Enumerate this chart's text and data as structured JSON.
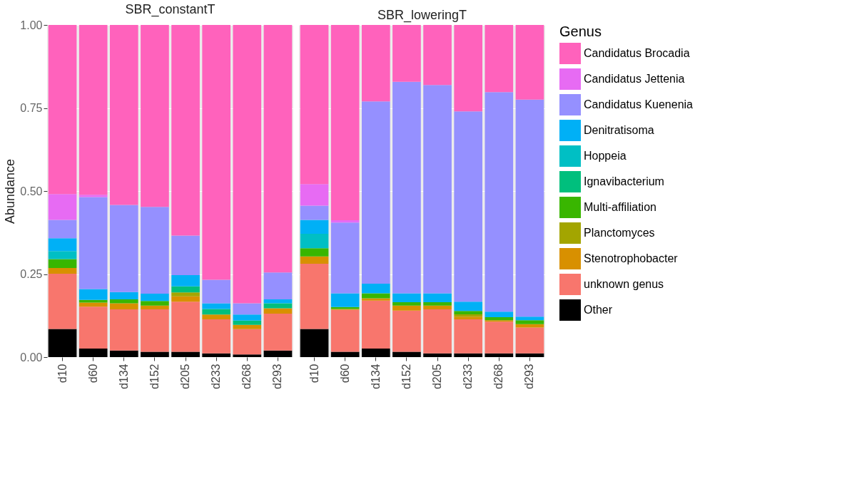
{
  "chart_data": [
    {
      "type": "bar",
      "stacked": true,
      "title": "SBR_constantT",
      "ylabel": "Abundance",
      "categories": [
        "d10",
        "d60",
        "d134",
        "d152",
        "d205",
        "d233",
        "d268",
        "d293"
      ],
      "ylim": [
        0,
        1
      ],
      "yticks": [
        {
          "value": 0,
          "label": "0.00"
        },
        {
          "value": 0.25,
          "label": "0.25"
        },
        {
          "value": 0.5,
          "label": "0.50"
        },
        {
          "value": 0.75,
          "label": "0.75"
        },
        {
          "value": 1,
          "label": "1.00"
        }
      ],
      "grid": true,
      "legend": "right",
      "legend_title": "Genus",
      "series": [
        {
          "name": "Other",
          "color": "#000000",
          "values": [
            0.085,
            0.026,
            0.02,
            0.016,
            0.016,
            0.011,
            0.008,
            0.02
          ]
        },
        {
          "name": "unknown genus",
          "color": "#f8766d",
          "values": [
            0.166,
            0.126,
            0.124,
            0.128,
            0.151,
            0.103,
            0.076,
            0.111
          ]
        },
        {
          "name": "Stenotrophobacter",
          "color": "#d89000",
          "values": [
            0.017,
            0.012,
            0.018,
            0.011,
            0.016,
            0.014,
            0.013,
            0.016
          ]
        },
        {
          "name": "Planctomyces",
          "color": "#a3a500",
          "values": [
            0,
            0,
            0,
            0,
            0.012,
            0,
            0,
            0
          ]
        },
        {
          "name": "Multi-affiliation",
          "color": "#39b600",
          "values": [
            0.027,
            0.008,
            0.012,
            0.014,
            0,
            0,
            0,
            0
          ]
        },
        {
          "name": "Ignavibacterium",
          "color": "#00bf7d",
          "values": [
            0,
            0,
            0,
            0,
            0.018,
            0.017,
            0.013,
            0.015
          ]
        },
        {
          "name": "Hoppeia",
          "color": "#00bfc4",
          "values": [
            0.024,
            0,
            0,
            0,
            0,
            0,
            0,
            0
          ]
        },
        {
          "name": "Denitratisoma",
          "color": "#00b0f6",
          "values": [
            0.039,
            0.033,
            0.022,
            0.022,
            0.034,
            0.017,
            0.018,
            0.012
          ]
        },
        {
          "name": "Candidatus Kuenenia",
          "color": "#9590ff",
          "values": [
            0.055,
            0.277,
            0.262,
            0.261,
            0.119,
            0.071,
            0.034,
            0.081
          ]
        },
        {
          "name": "Candidatus Jettenia",
          "color": "#e76bf3",
          "values": [
            0.078,
            0.007,
            0,
            0,
            0,
            0,
            0,
            0
          ]
        },
        {
          "name": "Candidatus Brocadia",
          "color": "#ff62bc",
          "values": [
            0.509,
            0.511,
            0.542,
            0.548,
            0.634,
            0.767,
            0.838,
            0.745
          ]
        }
      ]
    },
    {
      "type": "bar",
      "stacked": true,
      "title": "SBR_loweringT",
      "categories": [
        "d10",
        "d60",
        "d134",
        "d152",
        "d205",
        "d233",
        "d268",
        "d293"
      ],
      "ylim": [
        0,
        1
      ],
      "yticks": [
        {
          "value": 0,
          "label": null
        },
        {
          "value": 0.25,
          "label": null
        },
        {
          "value": 0.5,
          "label": null
        },
        {
          "value": 0.75,
          "label": null
        },
        {
          "value": 1,
          "label": null
        }
      ],
      "grid": true,
      "tick_labels": "x",
      "series": [
        {
          "color": "#000000",
          "values": [
            0.085,
            0.016,
            0.026,
            0.016,
            0.011,
            0.011,
            0.011,
            0.011
          ]
        },
        {
          "color": "#f8766d",
          "values": [
            0.196,
            0.126,
            0.144,
            0.124,
            0.133,
            0.103,
            0.096,
            0.078
          ]
        },
        {
          "color": "#d89000",
          "values": [
            0.022,
            0.003,
            0.007,
            0.015,
            0.011,
            0.008,
            0.004,
            0.01
          ]
        },
        {
          "color": "#a3a500",
          "values": [
            0,
            0,
            0,
            0,
            0,
            0.007,
            0,
            0
          ]
        },
        {
          "color": "#39b600",
          "values": [
            0.025,
            0.006,
            0.015,
            0.01,
            0.01,
            0.01,
            0.009,
            0.012
          ]
        },
        {
          "color": "#00bf7d",
          "values": [
            0,
            0,
            0,
            0,
            0,
            0,
            0,
            0
          ]
        },
        {
          "color": "#00bfc4",
          "values": [
            0.043,
            0,
            0,
            0,
            0,
            0,
            0,
            0
          ]
        },
        {
          "color": "#00b0f6",
          "values": [
            0.042,
            0.041,
            0.029,
            0.027,
            0.027,
            0.028,
            0.017,
            0.011
          ]
        },
        {
          "color": "#9590ff",
          "values": [
            0.043,
            0.213,
            0.549,
            0.637,
            0.627,
            0.573,
            0.661,
            0.653
          ]
        },
        {
          "color": "#e76bf3",
          "values": [
            0.065,
            0.007,
            0,
            0,
            0,
            0,
            0,
            0
          ]
        },
        {
          "color": "#ff62bc",
          "values": [
            0.479,
            0.588,
            0.23,
            0.171,
            0.181,
            0.26,
            0.202,
            0.225
          ]
        }
      ]
    }
  ]
}
